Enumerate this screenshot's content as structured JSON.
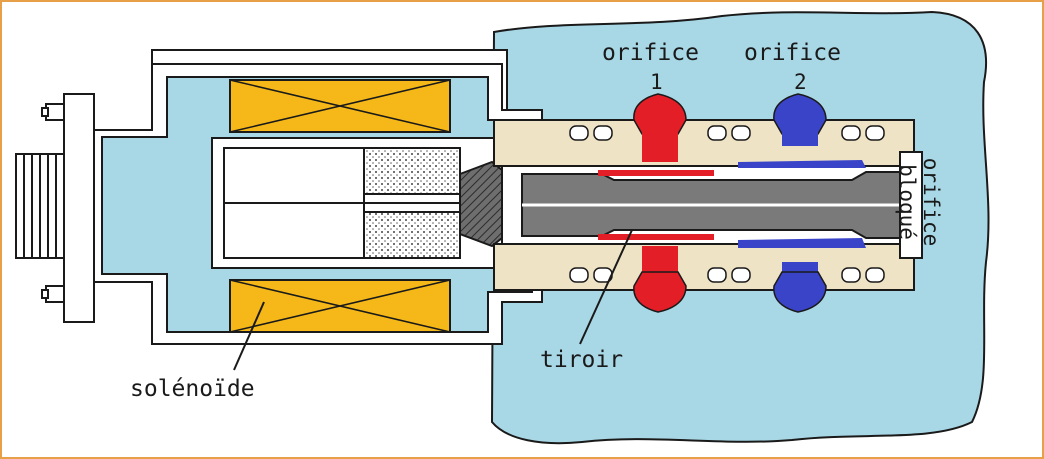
{
  "labels": {
    "orifice_1": "orifice",
    "orifice_1_number": "1",
    "orifice_2": "orifice",
    "orifice_2_number": "2",
    "blocked_orifice_line1": "orifice",
    "blocked_orifice_line2": "bloqué",
    "spool": "tiroir",
    "solenoid": "solénoïde"
  },
  "colors": {
    "fluid": "#a8d8e6",
    "coil": "#f5b818",
    "port_1": "#e41e26",
    "port_2": "#3a44c8",
    "sleeve": "#efe3c6",
    "spool": "#7a7a7a",
    "frame": "#ffffff",
    "outline": "#1a1a1a",
    "border": "#e8a048"
  }
}
